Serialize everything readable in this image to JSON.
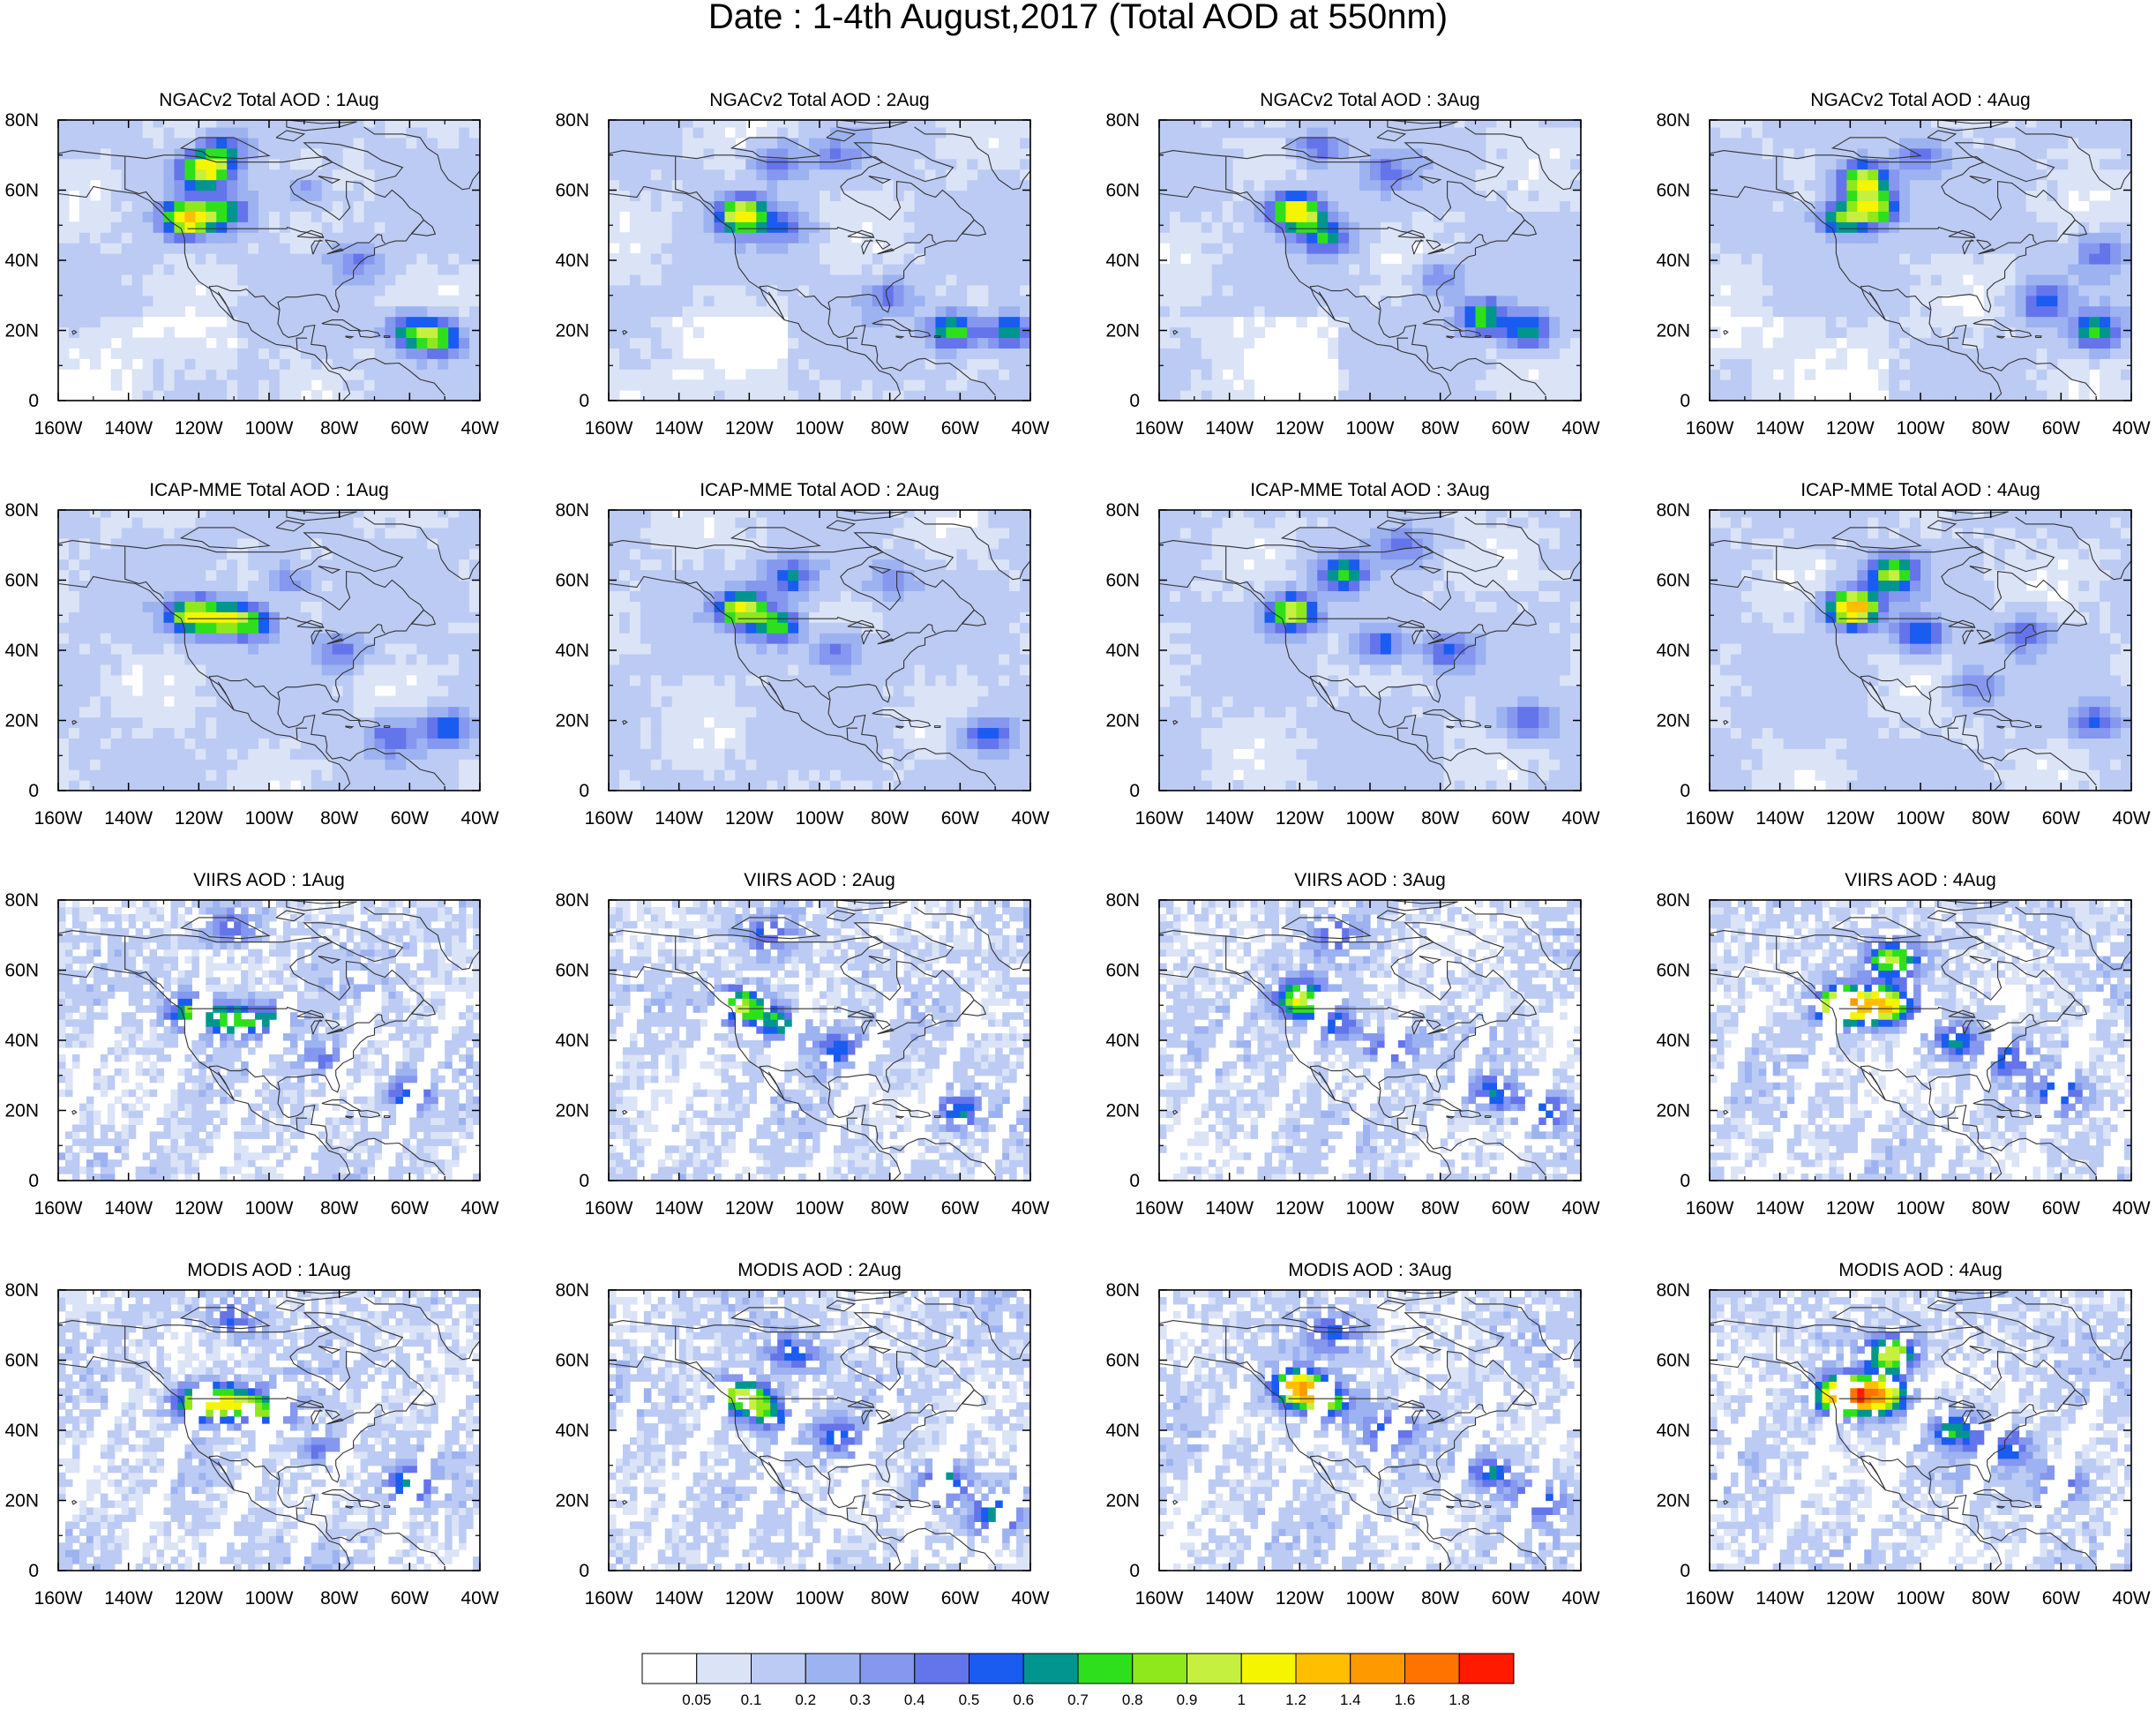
{
  "title": "Date : 1-4th August,2017 (Total AOD at 550nm)",
  "rows": [
    {
      "dataset": "NGACv2 Total AOD",
      "style": "smooth"
    },
    {
      "dataset": "ICAP-MME Total AOD",
      "style": "smooth"
    },
    {
      "dataset": "VIIRS AOD",
      "style": "sparse"
    },
    {
      "dataset": "MODIS AOD",
      "style": "sparse"
    }
  ],
  "days": [
    "1Aug",
    "2Aug",
    "3Aug",
    "4Aug"
  ],
  "panel_titles": [
    [
      "NGACv2 Total AOD : 1Aug",
      "NGACv2 Total AOD : 2Aug",
      "NGACv2 Total AOD : 3Aug",
      "NGACv2 Total AOD : 4Aug"
    ],
    [
      "ICAP-MME Total AOD : 1Aug",
      "ICAP-MME Total AOD : 2Aug",
      "ICAP-MME Total AOD : 3Aug",
      "ICAP-MME Total AOD : 4Aug"
    ],
    [
      "VIIRS AOD : 1Aug",
      "VIIRS AOD : 2Aug",
      "VIIRS AOD : 3Aug",
      "VIIRS AOD : 4Aug"
    ],
    [
      "MODIS AOD : 1Aug",
      "MODIS AOD : 2Aug",
      "MODIS AOD : 3Aug",
      "MODIS AOD : 4Aug"
    ]
  ],
  "lon_ticks": [
    "160W",
    "140W",
    "120W",
    "100W",
    "80W",
    "60W",
    "40W"
  ],
  "lat_ticks": [
    "0",
    "20N",
    "40N",
    "60N",
    "80N"
  ],
  "map_extent": {
    "lon_min": -160,
    "lon_max": -40,
    "lat_min": 0,
    "lat_max": 80
  },
  "colorbar": {
    "labels": [
      "0.05",
      "0.1",
      "0.2",
      "0.3",
      "0.4",
      "0.5",
      "0.6",
      "0.7",
      "0.8",
      "0.9",
      "1",
      "1.2",
      "1.4",
      "1.6",
      "1.8"
    ],
    "colors": [
      "#ffffff",
      "#dbe3f7",
      "#bccbf3",
      "#9db2f0",
      "#8597ee",
      "#6474ea",
      "#1a5cf0",
      "#00968f",
      "#2ee01c",
      "#8ee81c",
      "#c5f03f",
      "#f5f500",
      "#ffbf00",
      "#ff9900",
      "#ff7300",
      "#ff1a00"
    ]
  },
  "plumes": [
    [
      [
        [
          -123,
          52,
          1.1
        ],
        [
          -118,
          66,
          0.95
        ],
        [
          -112,
          54,
          0.5
        ],
        [
          -52,
          18,
          0.75
        ],
        [
          -60,
          20,
          0.5
        ],
        [
          -112,
          72,
          0.4
        ],
        [
          -75,
          40,
          0.3
        ],
        [
          -90,
          60,
          0.25
        ]
      ],
      [
        [
          -122,
          53,
          1.0
        ],
        [
          -112,
          68,
          0.4
        ],
        [
          -62,
          20,
          0.7
        ],
        [
          -46,
          20,
          0.6
        ],
        [
          -110,
          50,
          0.35
        ],
        [
          -80,
          30,
          0.3
        ],
        [
          -95,
          70,
          0.25
        ]
      ],
      [
        [
          -121,
          54,
          1.1
        ],
        [
          -112,
          47,
          0.55
        ],
        [
          -68,
          24,
          0.65
        ],
        [
          -55,
          20,
          0.6
        ],
        [
          -115,
          72,
          0.4
        ],
        [
          -95,
          65,
          0.3
        ],
        [
          -80,
          35,
          0.3
        ]
      ],
      [
        [
          -116,
          63,
          0.95
        ],
        [
          -113,
          55,
          0.8
        ],
        [
          -122,
          52,
          0.7
        ],
        [
          -50,
          20,
          0.6
        ],
        [
          -65,
          28,
          0.45
        ],
        [
          -48,
          42,
          0.35
        ],
        [
          -100,
          70,
          0.3
        ]
      ]
    ],
    [
      [
        [
          -122,
          50,
          0.85
        ],
        [
          -112,
          49,
          0.7
        ],
        [
          -104,
          48,
          0.5
        ],
        [
          -50,
          18,
          0.5
        ],
        [
          -65,
          15,
          0.4
        ],
        [
          -80,
          40,
          0.35
        ],
        [
          -95,
          60,
          0.3
        ]
      ],
      [
        [
          -122,
          52,
          0.85
        ],
        [
          -112,
          47,
          0.65
        ],
        [
          -108,
          61,
          0.5
        ],
        [
          -52,
          16,
          0.5
        ],
        [
          -95,
          40,
          0.35
        ],
        [
          -80,
          60,
          0.25
        ]
      ],
      [
        [
          -122,
          51,
          0.9
        ],
        [
          -108,
          62,
          0.6
        ],
        [
          -97,
          42,
          0.5
        ],
        [
          -78,
          40,
          0.4
        ],
        [
          -55,
          20,
          0.4
        ],
        [
          -90,
          70,
          0.3
        ]
      ],
      [
        [
          -119,
          52,
          1.3
        ],
        [
          -108,
          62,
          0.8
        ],
        [
          -100,
          45,
          0.5
        ],
        [
          -70,
          45,
          0.4
        ],
        [
          -50,
          20,
          0.4
        ],
        [
          -85,
          30,
          0.3
        ]
      ]
    ],
    [
      [
        [
          -122,
          48,
          0.7
        ],
        [
          -110,
          46,
          0.6
        ],
        [
          -100,
          46,
          0.45
        ],
        [
          -60,
          25,
          0.5
        ],
        [
          -85,
          35,
          0.35
        ],
        [
          -110,
          72,
          0.4
        ]
      ],
      [
        [
          -122,
          50,
          0.8
        ],
        [
          -112,
          45,
          0.6
        ],
        [
          -95,
          38,
          0.45
        ],
        [
          -60,
          20,
          0.5
        ],
        [
          -115,
          70,
          0.35
        ]
      ],
      [
        [
          -120,
          52,
          0.9
        ],
        [
          -110,
          45,
          0.5
        ],
        [
          -95,
          38,
          0.45
        ],
        [
          -65,
          25,
          0.5
        ],
        [
          -50,
          20,
          0.45
        ],
        [
          -110,
          70,
          0.35
        ]
      ],
      [
        [
          -122,
          50,
          1.4
        ],
        [
          -110,
          50,
          1.1
        ],
        [
          -108,
          63,
          0.8
        ],
        [
          -90,
          40,
          0.5
        ],
        [
          -60,
          25,
          0.5
        ],
        [
          -75,
          35,
          0.4
        ]
      ]
    ],
    [
      [
        [
          -120,
          48,
          0.9
        ],
        [
          -110,
          48,
          0.8
        ],
        [
          -100,
          46,
          0.6
        ],
        [
          -60,
          25,
          0.5
        ],
        [
          -85,
          35,
          0.35
        ],
        [
          -110,
          72,
          0.4
        ]
      ],
      [
        [
          -122,
          50,
          0.9
        ],
        [
          -115,
          45,
          0.6
        ],
        [
          -95,
          38,
          0.45
        ],
        [
          -65,
          25,
          0.55
        ],
        [
          -50,
          15,
          0.5
        ],
        [
          -108,
          62,
          0.5
        ]
      ],
      [
        [
          -120,
          52,
          1.3
        ],
        [
          -112,
          48,
          0.7
        ],
        [
          -95,
          40,
          0.5
        ],
        [
          -65,
          28,
          0.5
        ],
        [
          -52,
          20,
          0.5
        ],
        [
          -110,
          68,
          0.45
        ]
      ],
      [
        [
          -122,
          50,
          1.5
        ],
        [
          -112,
          50,
          1.3
        ],
        [
          -108,
          62,
          0.9
        ],
        [
          -90,
          40,
          0.55
        ],
        [
          -60,
          25,
          0.5
        ],
        [
          -75,
          35,
          0.45
        ]
      ]
    ]
  ]
}
